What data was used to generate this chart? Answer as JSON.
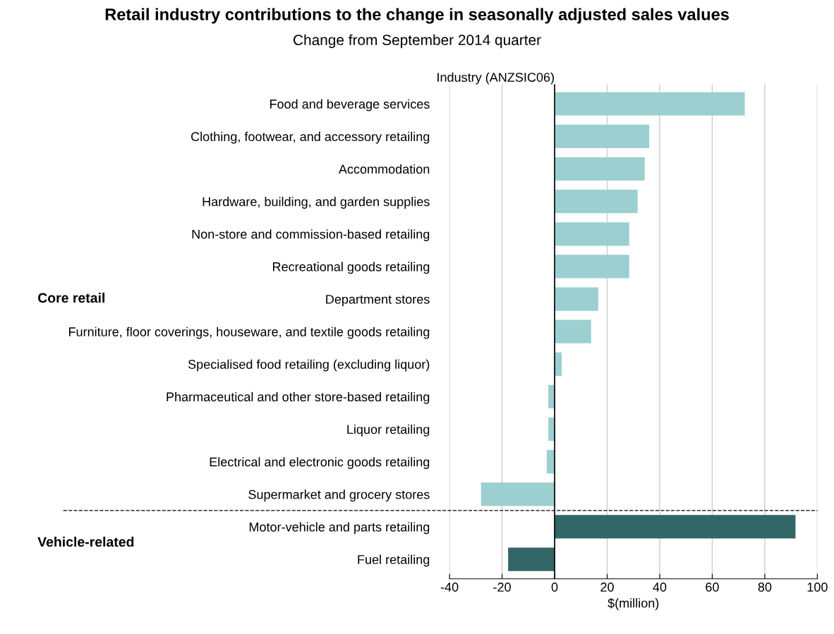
{
  "chart_data": {
    "type": "bar",
    "orientation": "horizontal",
    "title": "Retail industry contributions to the change in seasonally adjusted sales values",
    "subtitle": "Change from September 2014 quarter",
    "ylabel": "Industry (ANZSIC06)",
    "xlabel": "$(million)",
    "categories": [
      "Food and beverage services",
      "Clothing, footwear, and accessory retailing",
      "Accommodation",
      "Hardware, building, and garden supplies",
      "Non-store and commission-based retailing",
      "Recreational goods retailing",
      "Department stores",
      "Furniture, floor coverings, houseware, and textile goods retailing",
      "Specialised food retailing (excluding liquor)",
      "Pharmaceutical and other store-based retailing",
      "Liquor retailing",
      "Electrical and electronic goods retailing",
      "Supermarket and grocery stores",
      "Motor-vehicle and parts retailing",
      "Fuel retailing"
    ],
    "values": [
      72.4,
      36,
      34.3,
      31.6,
      28.4,
      28.4,
      16.6,
      13.9,
      2.7,
      -2.4,
      -2.4,
      -3,
      -28,
      91.7,
      -17.7
    ],
    "colors": [
      "#9ccfcf",
      "#9ccfcf",
      "#9ccfcf",
      "#9ccfcf",
      "#9ccfcf",
      "#9ccfcf",
      "#9ccfcf",
      "#9ccfcf",
      "#9ccfcf",
      "#9ccfcf",
      "#9ccfcf",
      "#9ccfcf",
      "#9ccfcf",
      "#336666",
      "#336666"
    ],
    "xlim": [
      -40,
      100
    ],
    "xticks": [
      -40,
      -20,
      0,
      20,
      40,
      60,
      80,
      100
    ],
    "grid": "x",
    "ref_lines": [
      {
        "axis": "y",
        "value": "Motor-vehicle and parts retailing",
        "line_style": "dashed",
        "color": "#000000"
      }
    ],
    "annotations": [
      "Core retail",
      "Vehicle-related"
    ]
  }
}
